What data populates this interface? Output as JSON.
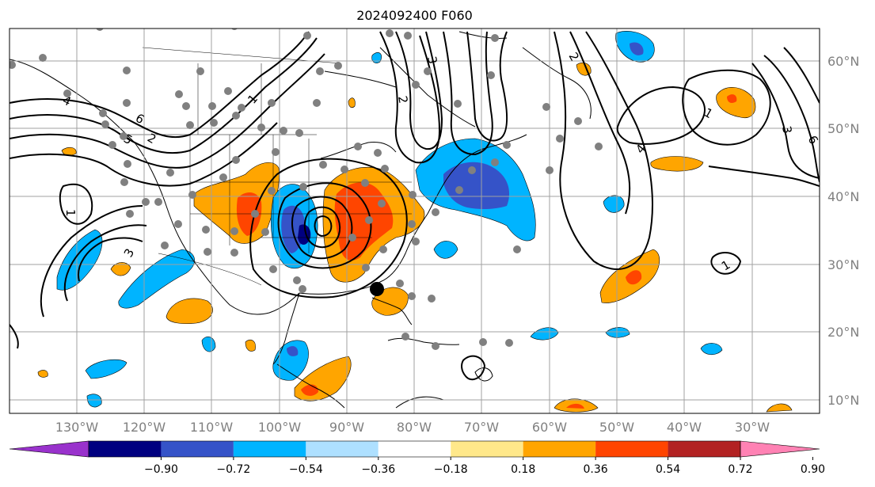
{
  "title": "2024092400 F060",
  "lat_labels": [
    "60°N",
    "50°N",
    "40°N",
    "30°N",
    "20°N",
    "10°N"
  ],
  "lon_labels": [
    "130°W",
    "120°W",
    "110°W",
    "100°W",
    "90°W",
    "80°W",
    "70°W",
    "60°W",
    "50°W",
    "40°W",
    "30°W"
  ],
  "colorbar": {
    "colors": [
      "#9932cc",
      "#000080",
      "#3553c8",
      "#00b4ff",
      "#aee0ff",
      "#ffffff",
      "#ffe88a",
      "#ffa500",
      "#ff4500",
      "#b22222",
      "#ff82b4"
    ],
    "tick_labels": [
      "−0.90",
      "−0.72",
      "−0.54",
      "−0.36",
      "−0.18",
      "0.18",
      "0.36",
      "0.54",
      "0.72",
      "0.90"
    ]
  },
  "contour_labels": [
    "1",
    "2",
    "3",
    "4",
    "5",
    "6",
    "1",
    "2",
    "3",
    "4",
    "1",
    "2",
    "3",
    "6",
    "1"
  ],
  "map": {
    "lon_range": [
      "-140",
      "-20"
    ],
    "lat_range": [
      "8",
      "65"
    ],
    "legend": "bottom"
  }
}
